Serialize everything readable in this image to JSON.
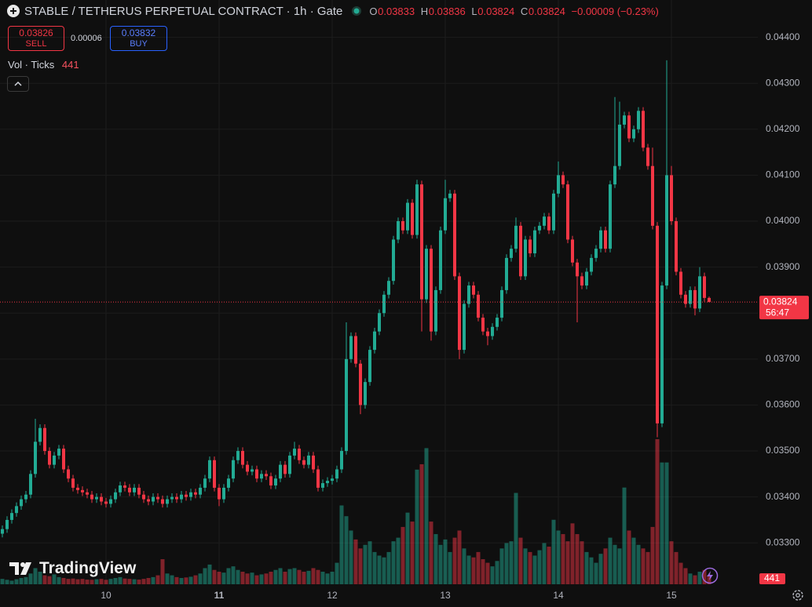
{
  "header": {
    "title": "STABLE / TETHERUS PERPETUAL CONTRACT · 1h · Gate",
    "ohlc_labels": [
      "O",
      "H",
      "L",
      "C"
    ],
    "change": "−0.00009 (−0.23%)"
  },
  "trade": {
    "sell_price": "0.03826",
    "sell": "SELL",
    "spread": "0.00006",
    "buy_price": "0.03832",
    "buy": "BUY"
  },
  "volume_legend": {
    "label": "Vol · Ticks"
  },
  "countdown": "56:47",
  "logo": "TradingView",
  "chart_data": {
    "type": "candlestick",
    "up_color": "#22ab94",
    "down_color": "#f23645",
    "grid": true,
    "ylim": [
      0.0321,
      0.0443
    ],
    "yticks": [
      {
        "value": 0.033,
        "label": "0.03300"
      },
      {
        "value": 0.034,
        "label": "0.03400"
      },
      {
        "value": 0.035,
        "label": "0.03500"
      },
      {
        "value": 0.036,
        "label": "0.03600"
      },
      {
        "value": 0.037,
        "label": "0.03700"
      },
      {
        "value": 0.038,
        "label": "0.03800"
      },
      {
        "value": 0.039,
        "label": "0.03900"
      },
      {
        "value": 0.04,
        "label": "0.04000"
      },
      {
        "value": 0.041,
        "label": "0.04100"
      },
      {
        "value": 0.042,
        "label": "0.04200"
      },
      {
        "value": 0.043,
        "label": "0.04300"
      },
      {
        "value": 0.044,
        "label": "0.04400"
      }
    ],
    "categories": [
      null,
      null,
      null,
      null,
      null,
      null,
      null,
      null,
      null,
      null,
      null,
      null,
      null,
      null,
      null,
      null,
      null,
      null,
      null,
      null,
      null,
      null,
      "10",
      null,
      null,
      null,
      null,
      null,
      null,
      null,
      null,
      null,
      null,
      null,
      null,
      null,
      null,
      null,
      null,
      null,
      null,
      null,
      null,
      null,
      null,
      null,
      "11",
      null,
      null,
      null,
      null,
      null,
      null,
      null,
      null,
      null,
      null,
      null,
      null,
      null,
      null,
      null,
      null,
      null,
      null,
      null,
      null,
      null,
      null,
      null,
      "12",
      null,
      null,
      null,
      null,
      null,
      null,
      null,
      null,
      null,
      null,
      null,
      null,
      null,
      null,
      null,
      null,
      null,
      null,
      null,
      null,
      null,
      null,
      null,
      "13",
      null,
      null,
      null,
      null,
      null,
      null,
      null,
      null,
      null,
      null,
      null,
      null,
      null,
      null,
      null,
      null,
      null,
      null,
      null,
      null,
      null,
      null,
      null,
      "14",
      null,
      null,
      null,
      null,
      null,
      null,
      null,
      null,
      null,
      null,
      null,
      null,
      null,
      null,
      null,
      null,
      null,
      null,
      null,
      null,
      null,
      null,
      null,
      "15",
      null,
      null,
      null,
      null,
      null,
      null,
      null,
      null
    ],
    "open": [
      0.0332,
      0.0333,
      0.0335,
      0.03365,
      0.0338,
      0.03395,
      0.03405,
      0.0345,
      0.0352,
      0.0355,
      0.035,
      0.0347,
      0.0349,
      0.03505,
      0.0346,
      0.0344,
      0.0342,
      0.03415,
      0.0341,
      0.03405,
      0.03395,
      0.034,
      0.0339,
      0.03385,
      0.03395,
      0.0341,
      0.03425,
      0.0342,
      0.0341,
      0.0342,
      0.03405,
      0.03395,
      0.0339,
      0.034,
      0.03395,
      0.03385,
      0.03395,
      0.034,
      0.03395,
      0.03405,
      0.034,
      0.0341,
      0.03405,
      0.0342,
      0.0344,
      0.0348,
      0.0342,
      0.03395,
      0.0342,
      0.0344,
      0.0348,
      0.035,
      0.0347,
      0.03455,
      0.0346,
      0.0344,
      0.0345,
      0.03445,
      0.03425,
      0.0344,
      0.0347,
      0.0345,
      0.0349,
      0.03505,
      0.0348,
      0.0347,
      0.0349,
      0.0346,
      0.0342,
      0.0343,
      0.03435,
      0.0344,
      0.0346,
      0.035,
      0.037,
      0.0375,
      0.0369,
      0.036,
      0.0365,
      0.0372,
      0.0376,
      0.038,
      0.0384,
      0.0387,
      0.0396,
      0.04,
      0.0398,
      0.0404,
      0.0397,
      0.0408,
      0.0383,
      0.0394,
      0.0376,
      0.0385,
      0.0398,
      0.0405,
      0.0406,
      0.0388,
      0.0372,
      0.0382,
      0.0386,
      0.0384,
      0.0379,
      0.0376,
      0.0375,
      0.0377,
      0.0379,
      0.0385,
      0.0392,
      0.0394,
      0.0399,
      0.0388,
      0.0396,
      0.0393,
      0.0398,
      0.0399,
      0.0401,
      0.0398,
      0.0406,
      0.041,
      0.0408,
      0.0396,
      0.0391,
      0.0388,
      0.0386,
      0.0389,
      0.0392,
      0.0394,
      0.0398,
      0.0394,
      0.0408,
      0.0412,
      0.0421,
      0.0423,
      0.0418,
      0.042,
      0.0424,
      0.0416,
      0.0412,
      0.0399,
      0.0356,
      0.0386,
      0.041,
      0.04,
      0.0389,
      0.0384,
      0.0382,
      0.0385,
      0.0381,
      0.0388,
      0.03833
    ],
    "high": [
      0.03338,
      0.03358,
      0.03373,
      0.03388,
      0.03403,
      0.03413,
      0.03458,
      0.0357,
      0.03558,
      0.03558,
      0.03508,
      0.03498,
      0.03513,
      0.03513,
      0.03468,
      0.03448,
      0.03428,
      0.03423,
      0.03418,
      0.03413,
      0.03408,
      0.03408,
      0.03398,
      0.03403,
      0.03418,
      0.03433,
      0.03433,
      0.03428,
      0.03428,
      0.03428,
      0.03413,
      0.03403,
      0.03408,
      0.03408,
      0.03403,
      0.03403,
      0.03408,
      0.03408,
      0.03413,
      0.03413,
      0.03418,
      0.03418,
      0.03428,
      0.03448,
      0.03488,
      0.03488,
      0.03428,
      0.03428,
      0.03448,
      0.03488,
      0.03508,
      0.03508,
      0.03478,
      0.03468,
      0.03468,
      0.03458,
      0.03458,
      0.03453,
      0.03448,
      0.03478,
      0.03478,
      0.03498,
      0.0352,
      0.03513,
      0.03488,
      0.03498,
      0.03498,
      0.03468,
      0.03438,
      0.03443,
      0.03448,
      0.03468,
      0.03508,
      0.0378,
      0.03758,
      0.03758,
      0.03698,
      0.03658,
      0.03728,
      0.03768,
      0.03808,
      0.03848,
      0.03878,
      0.03968,
      0.04008,
      0.04008,
      0.04048,
      0.04048,
      0.0409,
      0.04088,
      0.03948,
      0.03948,
      0.03858,
      0.03988,
      0.0409,
      0.04068,
      0.04068,
      0.03888,
      0.03828,
      0.03868,
      0.03868,
      0.03848,
      0.03798,
      0.03768,
      0.03778,
      0.03798,
      0.03858,
      0.03928,
      0.03948,
      0.04008,
      0.03998,
      0.03968,
      0.03968,
      0.03988,
      0.03998,
      0.04018,
      0.04018,
      0.04068,
      0.0413,
      0.04108,
      0.04088,
      0.03968,
      0.03918,
      0.03888,
      0.03898,
      0.03928,
      0.03948,
      0.03988,
      0.03988,
      0.04088,
      0.0427,
      0.0426,
      0.04238,
      0.04238,
      0.04208,
      0.04248,
      0.04248,
      0.04168,
      0.0416,
      0.03998,
      0.03868,
      0.0435,
      0.0412,
      0.04008,
      0.03898,
      0.03848,
      0.03858,
      0.03858,
      0.039,
      0.03888,
      0.03836
    ],
    "low": [
      0.03312,
      0.03322,
      0.03342,
      0.03357,
      0.03372,
      0.03387,
      0.03397,
      0.03442,
      0.03512,
      0.03492,
      0.03462,
      0.03462,
      0.03482,
      0.03452,
      0.03432,
      0.03412,
      0.03407,
      0.03402,
      0.03397,
      0.03387,
      0.03387,
      0.03382,
      0.03377,
      0.03377,
      0.03387,
      0.03402,
      0.03412,
      0.03402,
      0.03402,
      0.03397,
      0.03387,
      0.03382,
      0.03382,
      0.03387,
      0.03377,
      0.03377,
      0.03387,
      0.03387,
      0.03387,
      0.03392,
      0.03392,
      0.03397,
      0.03397,
      0.03412,
      0.03432,
      0.03412,
      0.0338,
      0.03387,
      0.03412,
      0.03432,
      0.03472,
      0.03462,
      0.03447,
      0.03447,
      0.03432,
      0.03432,
      0.03437,
      0.03417,
      0.03417,
      0.03432,
      0.03442,
      0.03442,
      0.03482,
      0.03472,
      0.03462,
      0.03462,
      0.03452,
      0.03412,
      0.03412,
      0.03422,
      0.03427,
      0.03432,
      0.03452,
      0.03492,
      0.03692,
      0.03682,
      0.0358,
      0.03592,
      0.03642,
      0.03712,
      0.03752,
      0.03792,
      0.03832,
      0.03862,
      0.03952,
      0.03972,
      0.03972,
      0.03962,
      0.03962,
      0.0376,
      0.03822,
      0.0374,
      0.03752,
      0.03842,
      0.03972,
      0.04042,
      0.03872,
      0.037,
      0.03712,
      0.03812,
      0.03832,
      0.03782,
      0.03752,
      0.0373,
      0.03742,
      0.03762,
      0.03782,
      0.03842,
      0.03912,
      0.03932,
      0.03872,
      0.03872,
      0.03922,
      0.03922,
      0.03972,
      0.03982,
      0.03972,
      0.03972,
      0.04052,
      0.04072,
      0.03952,
      0.03902,
      0.0378,
      0.03852,
      0.03852,
      0.03882,
      0.03912,
      0.03932,
      0.03932,
      0.03932,
      0.04072,
      0.04112,
      0.04202,
      0.04172,
      0.04172,
      0.04192,
      0.04152,
      0.04112,
      0.03982,
      0.0353,
      0.03552,
      0.03852,
      0.03992,
      0.03882,
      0.03832,
      0.03812,
      0.03812,
      0.03795,
      0.03802,
      0.03825,
      0.03824
    ],
    "close": [
      0.0333,
      0.0335,
      0.03365,
      0.0338,
      0.03395,
      0.03405,
      0.0345,
      0.0352,
      0.0355,
      0.035,
      0.0347,
      0.0349,
      0.03505,
      0.0346,
      0.0344,
      0.0342,
      0.03415,
      0.0341,
      0.03405,
      0.03395,
      0.034,
      0.0339,
      0.03385,
      0.03395,
      0.0341,
      0.03425,
      0.0342,
      0.0341,
      0.0342,
      0.03405,
      0.03395,
      0.0339,
      0.034,
      0.03395,
      0.03385,
      0.03395,
      0.034,
      0.03395,
      0.03405,
      0.034,
      0.0341,
      0.03405,
      0.0342,
      0.0344,
      0.0348,
      0.0342,
      0.03395,
      0.0342,
      0.0344,
      0.0348,
      0.035,
      0.0347,
      0.03455,
      0.0346,
      0.0344,
      0.0345,
      0.03445,
      0.03425,
      0.0344,
      0.0347,
      0.0345,
      0.0349,
      0.03505,
      0.0348,
      0.0347,
      0.0349,
      0.0346,
      0.0342,
      0.0343,
      0.03435,
      0.0344,
      0.0346,
      0.035,
      0.037,
      0.0375,
      0.0369,
      0.036,
      0.0365,
      0.0372,
      0.0376,
      0.038,
      0.0384,
      0.0387,
      0.0396,
      0.04,
      0.0398,
      0.0404,
      0.0397,
      0.0408,
      0.0383,
      0.0394,
      0.0376,
      0.0385,
      0.0398,
      0.0405,
      0.0406,
      0.0388,
      0.0372,
      0.0382,
      0.0386,
      0.0384,
      0.0379,
      0.0376,
      0.0375,
      0.0377,
      0.0379,
      0.0385,
      0.0392,
      0.0394,
      0.0399,
      0.0388,
      0.0396,
      0.0393,
      0.0398,
      0.0399,
      0.0401,
      0.0398,
      0.0406,
      0.041,
      0.0408,
      0.0396,
      0.0391,
      0.0388,
      0.0386,
      0.0389,
      0.0392,
      0.0394,
      0.0398,
      0.0394,
      0.0408,
      0.0412,
      0.0421,
      0.0423,
      0.0418,
      0.042,
      0.0424,
      0.0416,
      0.0412,
      0.0399,
      0.0356,
      0.0386,
      0.041,
      0.04,
      0.0389,
      0.0384,
      0.0382,
      0.0385,
      0.0381,
      0.0388,
      0.03833,
      0.03824
    ],
    "volume": [
      300,
      250,
      200,
      280,
      350,
      400,
      600,
      900,
      700,
      500,
      450,
      550,
      400,
      350,
      300,
      320,
      280,
      300,
      260,
      250,
      280,
      300,
      250,
      300,
      350,
      400,
      320,
      300,
      280,
      260,
      300,
      350,
      400,
      500,
      1400,
      600,
      500,
      400,
      350,
      380,
      420,
      500,
      600,
      900,
      1100,
      800,
      700,
      650,
      900,
      1000,
      800,
      700,
      600,
      650,
      500,
      550,
      600,
      700,
      800,
      900,
      700,
      850,
      900,
      800,
      700,
      750,
      900,
      800,
      700,
      600,
      700,
      1200,
      4400,
      3800,
      3000,
      2500,
      2000,
      2200,
      2400,
      1800,
      1600,
      1500,
      1800,
      2400,
      2600,
      3200,
      4000,
      3500,
      6400,
      6700,
      7600,
      3500,
      2800,
      2200,
      2500,
      1800,
      2600,
      3000,
      2000,
      1600,
      1500,
      1800,
      1400,
      1200,
      1000,
      1300,
      2000,
      2300,
      2400,
      5100,
      2600,
      2000,
      1800,
      1600,
      1900,
      2300,
      2100,
      3600,
      3000,
      2800,
      2400,
      3400,
      2800,
      2400,
      1800,
      1500,
      1200,
      1700,
      2000,
      2600,
      2200,
      2000,
      5400,
      3000,
      2600,
      2200,
      2000,
      1800,
      3200,
      8100,
      6800,
      6800,
      2400,
      1800,
      1200,
      900,
      600,
      500,
      700,
      800,
      441
    ]
  }
}
